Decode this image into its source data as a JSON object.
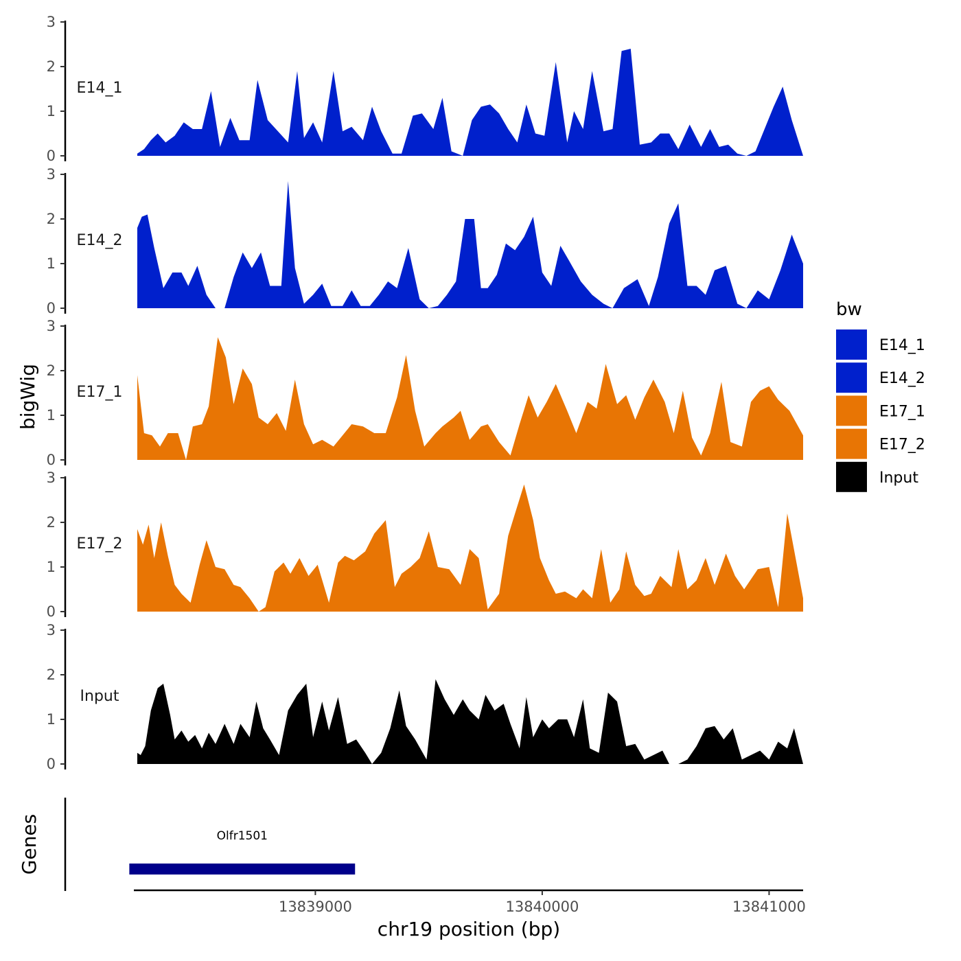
{
  "chart_data": {
    "type": "area",
    "ylabel": "bigWig",
    "xlabel": "chr19 position (bp)",
    "ylim": [
      0,
      3
    ],
    "yticks": [
      0,
      1,
      2,
      3
    ],
    "xlim": [
      13838200,
      13841150
    ],
    "xticks": [
      13839000,
      13840000,
      13841000
    ],
    "xtick_labels": [
      "13839000",
      "13840000",
      "13841000"
    ],
    "tracks": [
      {
        "name": "E14_1",
        "color": "#0020cc",
        "x": [
          13838215,
          13838245,
          13838275,
          13838305,
          13838340,
          13838380,
          13838420,
          13838460,
          13838500,
          13838540,
          13838580,
          13838625,
          13838665,
          13838710,
          13838745,
          13838790,
          13838835,
          13838880,
          13838920,
          13838950,
          13838990,
          13839030,
          13839080,
          13839120,
          13839160,
          13839210,
          13839250,
          13839290,
          13839340,
          13839380,
          13839430,
          13839470,
          13839520,
          13839560,
          13839600,
          13839650,
          13839690,
          13839730,
          13839770,
          13839810,
          13839850,
          13839890,
          13839930,
          13839970,
          13840010,
          13840060,
          13840110,
          13840140,
          13840180,
          13840220,
          13840270,
          13840310,
          13840350,
          13840390,
          13840430,
          13840480,
          13840520,
          13840560,
          13840600,
          13840650,
          13840700,
          13840740,
          13840780,
          13840820,
          13840860,
          13840900,
          13840940,
          13840980,
          13841020,
          13841060,
          13841100,
          13841150
        ],
        "values": [
          0.05,
          0.15,
          0.35,
          0.5,
          0.3,
          0.45,
          0.75,
          0.6,
          0.6,
          1.45,
          0.2,
          0.85,
          0.35,
          0.35,
          1.7,
          0.8,
          0.55,
          0.3,
          1.9,
          0.4,
          0.75,
          0.3,
          1.9,
          0.55,
          0.65,
          0.35,
          1.1,
          0.55,
          0.05,
          0.05,
          0.9,
          0.95,
          0.6,
          1.3,
          0.1,
          0.0,
          0.8,
          1.1,
          1.15,
          0.95,
          0.6,
          0.3,
          1.15,
          0.5,
          0.45,
          2.1,
          0.3,
          1.0,
          0.6,
          1.9,
          0.55,
          0.6,
          2.35,
          2.4,
          0.25,
          0.3,
          0.5,
          0.5,
          0.15,
          0.7,
          0.2,
          0.6,
          0.2,
          0.25,
          0.05,
          0.0,
          0.1,
          0.6,
          1.1,
          1.55,
          0.8,
          0.0
        ]
      },
      {
        "name": "E14_2",
        "color": "#0020cc",
        "x": [
          13838215,
          13838235,
          13838260,
          13838290,
          13838330,
          13838370,
          13838410,
          13838440,
          13838480,
          13838520,
          13838560,
          13838600,
          13838640,
          13838680,
          13838720,
          13838760,
          13838800,
          13838850,
          13838880,
          13838910,
          13838950,
          13838990,
          13839030,
          13839070,
          13839120,
          13839160,
          13839200,
          13839240,
          13839280,
          13839320,
          13839360,
          13839410,
          13839460,
          13839500,
          13839540,
          13839580,
          13839620,
          13839660,
          13839700,
          13839730,
          13839760,
          13839800,
          13839840,
          13839880,
          13839920,
          13839960,
          13840000,
          13840040,
          13840080,
          13840120,
          13840170,
          13840220,
          13840270,
          13840310,
          13840360,
          13840420,
          13840470,
          13840510,
          13840560,
          13840600,
          13840640,
          13840680,
          13840720,
          13840760,
          13840810,
          13840860,
          13840900,
          13840950,
          13841000,
          13841050,
          13841100,
          13841150
        ],
        "values": [
          1.8,
          2.05,
          2.1,
          1.35,
          0.45,
          0.8,
          0.8,
          0.5,
          0.95,
          0.3,
          0.0,
          0.0,
          0.7,
          1.25,
          0.9,
          1.25,
          0.5,
          0.5,
          2.85,
          0.9,
          0.1,
          0.3,
          0.55,
          0.05,
          0.05,
          0.4,
          0.05,
          0.05,
          0.3,
          0.6,
          0.45,
          1.35,
          0.2,
          0.0,
          0.05,
          0.3,
          0.6,
          2.0,
          2.0,
          0.45,
          0.45,
          0.75,
          1.45,
          1.3,
          1.6,
          2.05,
          0.8,
          0.5,
          1.4,
          1.05,
          0.6,
          0.3,
          0.1,
          0.0,
          0.45,
          0.65,
          0.05,
          0.7,
          1.9,
          2.35,
          0.5,
          0.5,
          0.3,
          0.85,
          0.95,
          0.1,
          0.0,
          0.4,
          0.2,
          0.85,
          1.65,
          1.0
        ]
      },
      {
        "name": "E17_1",
        "color": "#e87504",
        "x": [
          13838215,
          13838245,
          13838280,
          13838315,
          13838350,
          13838395,
          13838430,
          13838460,
          13838500,
          13838530,
          13838570,
          13838605,
          13838640,
          13838680,
          13838720,
          13838750,
          13838790,
          13838830,
          13838870,
          13838910,
          13838950,
          13838990,
          13839030,
          13839080,
          13839120,
          13839160,
          13839210,
          13839260,
          13839310,
          13839360,
          13839400,
          13839440,
          13839480,
          13839530,
          13839560,
          13839610,
          13839640,
          13839680,
          13839730,
          13839760,
          13839810,
          13839860,
          13839900,
          13839940,
          13839980,
          13840020,
          13840060,
          13840110,
          13840150,
          13840200,
          13840240,
          13840280,
          13840330,
          13840370,
          13840410,
          13840450,
          13840490,
          13840540,
          13840580,
          13840620,
          13840660,
          13840700,
          13840740,
          13840790,
          13840830,
          13840880,
          13840920,
          13840960,
          13841000,
          13841040,
          13841090,
          13841150
        ],
        "values": [
          1.9,
          0.6,
          0.55,
          0.3,
          0.6,
          0.6,
          0.0,
          0.75,
          0.8,
          1.2,
          2.75,
          2.3,
          1.25,
          2.05,
          1.7,
          0.95,
          0.8,
          1.05,
          0.65,
          1.8,
          0.8,
          0.35,
          0.45,
          0.3,
          0.55,
          0.8,
          0.75,
          0.6,
          0.6,
          1.4,
          2.35,
          1.1,
          0.3,
          0.6,
          0.75,
          0.95,
          1.1,
          0.45,
          0.75,
          0.8,
          0.4,
          0.1,
          0.8,
          1.45,
          0.95,
          1.3,
          1.7,
          1.1,
          0.6,
          1.3,
          1.15,
          2.15,
          1.25,
          1.45,
          0.9,
          1.4,
          1.8,
          1.3,
          0.6,
          1.55,
          0.5,
          0.1,
          0.6,
          1.75,
          0.4,
          0.3,
          1.3,
          1.55,
          1.65,
          1.35,
          1.1,
          0.55
        ]
      },
      {
        "name": "E17_2",
        "color": "#e87504",
        "x": [
          13838215,
          13838240,
          13838265,
          13838290,
          13838320,
          13838350,
          13838380,
          13838410,
          13838450,
          13838490,
          13838520,
          13838560,
          13838600,
          13838640,
          13838670,
          13838710,
          13838750,
          13838780,
          13838820,
          13838860,
          13838890,
          13838930,
          13838970,
          13839010,
          13839060,
          13839100,
          13839130,
          13839170,
          13839220,
          13839260,
          13839310,
          13839350,
          13839380,
          13839420,
          13839460,
          13839500,
          13839540,
          13839590,
          13839640,
          13839680,
          13839720,
          13839760,
          13839810,
          13839850,
          13839880,
          13839920,
          13839960,
          13839990,
          13840030,
          13840060,
          13840100,
          13840150,
          13840180,
          13840220,
          13840260,
          13840300,
          13840340,
          13840370,
          13840410,
          13840450,
          13840480,
          13840520,
          13840570,
          13840600,
          13840640,
          13840680,
          13840720,
          13840760,
          13840810,
          13840850,
          13840890,
          13840950,
          13841000,
          13841040,
          13841080,
          13841150
        ],
        "values": [
          1.85,
          1.5,
          1.95,
          1.2,
          2.0,
          1.25,
          0.6,
          0.4,
          0.2,
          1.05,
          1.6,
          1.0,
          0.95,
          0.6,
          0.55,
          0.3,
          0.0,
          0.1,
          0.9,
          1.1,
          0.85,
          1.2,
          0.8,
          1.05,
          0.2,
          1.1,
          1.25,
          1.15,
          1.35,
          1.75,
          2.05,
          0.55,
          0.85,
          1.0,
          1.2,
          1.8,
          1.0,
          0.95,
          0.6,
          1.4,
          1.2,
          0.05,
          0.4,
          1.7,
          2.2,
          2.85,
          2.05,
          1.2,
          0.7,
          0.4,
          0.45,
          0.3,
          0.5,
          0.3,
          1.4,
          0.2,
          0.5,
          1.35,
          0.6,
          0.35,
          0.4,
          0.8,
          0.55,
          1.4,
          0.5,
          0.7,
          1.2,
          0.6,
          1.3,
          0.8,
          0.5,
          0.95,
          1.0,
          0.1,
          2.2,
          0.3
        ]
      },
      {
        "name": "Input",
        "color": "#000000",
        "x": [
          13838215,
          13838230,
          13838250,
          13838275,
          13838305,
          13838330,
          13838360,
          13838380,
          13838410,
          13838440,
          13838470,
          13838500,
          13838530,
          13838560,
          13838600,
          13838640,
          13838670,
          13838710,
          13838740,
          13838770,
          13838800,
          13838840,
          13838880,
          13838920,
          13838960,
          13838990,
          13839030,
          13839060,
          13839100,
          13839140,
          13839180,
          13839220,
          13839250,
          13839290,
          13839330,
          13839370,
          13839400,
          13839440,
          13839490,
          13839530,
          13839570,
          13839610,
          13839650,
          13839680,
          13839720,
          13839750,
          13839790,
          13839830,
          13839860,
          13839900,
          13839930,
          13839960,
          13840000,
          13840030,
          13840070,
          13840110,
          13840140,
          13840180,
          13840210,
          13840250,
          13840290,
          13840330,
          13840370,
          13840410,
          13840450,
          13840490,
          13840530,
          13840560,
          13840600,
          13840640,
          13840680,
          13840720,
          13840760,
          13840800,
          13840840,
          13840880,
          13840920,
          13840960,
          13841000,
          13841040,
          13841080,
          13841110,
          13841150
        ],
        "values": [
          0.25,
          0.2,
          0.4,
          1.2,
          1.7,
          1.8,
          1.1,
          0.55,
          0.75,
          0.5,
          0.65,
          0.35,
          0.7,
          0.45,
          0.9,
          0.45,
          0.9,
          0.6,
          1.4,
          0.8,
          0.55,
          0.2,
          1.2,
          1.55,
          1.8,
          0.6,
          1.4,
          0.75,
          1.5,
          0.45,
          0.55,
          0.25,
          0.0,
          0.25,
          0.8,
          1.65,
          0.85,
          0.55,
          0.1,
          1.9,
          1.45,
          1.1,
          1.45,
          1.2,
          1.0,
          1.55,
          1.2,
          1.35,
          0.9,
          0.35,
          1.5,
          0.6,
          1.0,
          0.8,
          1.0,
          1.0,
          0.6,
          1.45,
          0.35,
          0.25,
          1.6,
          1.4,
          0.4,
          0.45,
          0.1,
          0.2,
          0.3,
          0.0,
          0.0,
          0.1,
          0.4,
          0.8,
          0.85,
          0.55,
          0.8,
          0.1,
          0.2,
          0.3,
          0.1,
          0.5,
          0.35,
          0.8,
          0.0
        ]
      }
    ],
    "genes": {
      "title": "Genes",
      "items": [
        {
          "name": "Olfr1501",
          "start": 13838180,
          "end": 13839175,
          "color": "#00008b"
        }
      ]
    },
    "legend": {
      "title": "bw",
      "position": "right",
      "entries": [
        {
          "label": "E14_1",
          "color": "#0020cc"
        },
        {
          "label": "E14_2",
          "color": "#0020cc"
        },
        {
          "label": "E17_1",
          "color": "#e87504"
        },
        {
          "label": "E17_2",
          "color": "#e87504"
        },
        {
          "label": "Input",
          "color": "#000000"
        }
      ]
    }
  }
}
